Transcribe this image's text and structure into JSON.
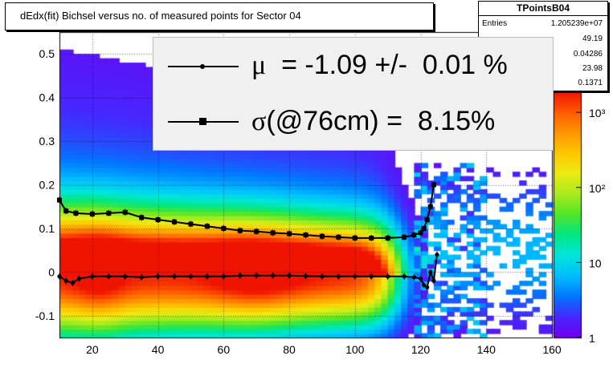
{
  "title": "dEdx(fit) Bichsel versus no. of measured points for Sector 04",
  "stats": {
    "name": "TPointsB04",
    "rows": [
      {
        "label": "Entries",
        "value": "1.205239e+07"
      },
      {
        "label": "",
        "value": "49.19"
      },
      {
        "label": "",
        "value": "0.04286"
      },
      {
        "label": "",
        "value": "23.98"
      },
      {
        "label": "",
        "value": "0.1371"
      }
    ]
  },
  "legend": {
    "mu_symbol": "μ",
    "mu_text": "  = -1.09 +/-  0.01 %",
    "sigma_symbol": "σ",
    "sigma_text": "(@76cm) =  8.15%"
  },
  "colors": {
    "mu_marker": "#000000",
    "sigma_marker": "#000000",
    "legend_bg": "#f0f0f0"
  },
  "chart_data": {
    "type": "heatmap",
    "title": "dEdx(fit) Bichsel versus no. of measured points for Sector 04",
    "xlabel": "",
    "ylabel": "",
    "xlim": [
      10,
      160
    ],
    "ylim": [
      -0.15,
      0.55
    ],
    "x_ticks": [
      20,
      40,
      60,
      80,
      100,
      120,
      140,
      160
    ],
    "y_ticks": [
      -0.1,
      0,
      0.1,
      0.2,
      0.3,
      0.4,
      0.5
    ],
    "y_tick_labels": [
      "-0.1",
      "0",
      "0.1",
      "0.2",
      "0.3",
      "0.4",
      "0.5"
    ],
    "z_scale": "log",
    "z_range": [
      1,
      2000
    ],
    "z_tick_labels": [
      "1",
      "10",
      "10²",
      "10³"
    ],
    "z_ticks": [
      1,
      10,
      100,
      1000
    ],
    "series": [
      {
        "name": "mu",
        "marker": "circle",
        "x": [
          10,
          12,
          14,
          16,
          20,
          25,
          30,
          35,
          40,
          45,
          50,
          55,
          60,
          65,
          70,
          75,
          80,
          85,
          90,
          95,
          100,
          105,
          110,
          115,
          118,
          120,
          121,
          122,
          123,
          124,
          125
        ],
        "y": [
          -0.01,
          -0.02,
          -0.025,
          -0.015,
          -0.01,
          -0.01,
          -0.01,
          -0.012,
          -0.01,
          -0.01,
          -0.01,
          -0.01,
          -0.01,
          -0.008,
          -0.008,
          -0.008,
          -0.008,
          -0.009,
          -0.01,
          -0.01,
          -0.01,
          -0.01,
          -0.01,
          -0.01,
          -0.012,
          -0.015,
          -0.03,
          -0.035,
          0.0,
          -0.02,
          0.04
        ]
      },
      {
        "name": "sigma",
        "marker": "square",
        "x": [
          10,
          12,
          15,
          20,
          25,
          30,
          35,
          40,
          45,
          50,
          55,
          60,
          65,
          70,
          75,
          80,
          85,
          90,
          95,
          100,
          105,
          110,
          115,
          118,
          120,
          121,
          122,
          123,
          124
        ],
        "y": [
          0.165,
          0.14,
          0.135,
          0.133,
          0.135,
          0.137,
          0.125,
          0.12,
          0.115,
          0.11,
          0.105,
          0.1,
          0.095,
          0.093,
          0.09,
          0.088,
          0.085,
          0.082,
          0.08,
          0.078,
          0.078,
          0.078,
          0.08,
          0.085,
          0.09,
          0.1,
          0.12,
          0.15,
          0.2
        ]
      }
    ]
  }
}
